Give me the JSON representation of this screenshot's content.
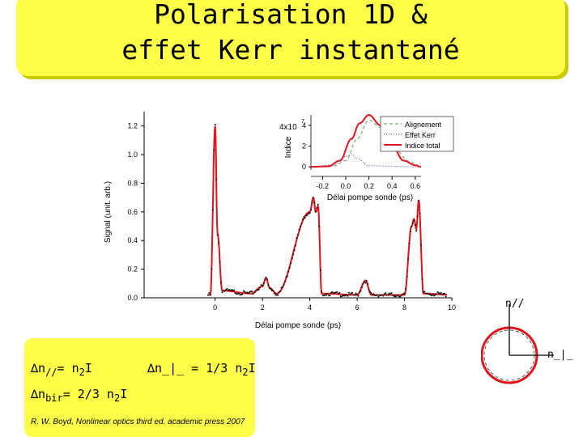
{
  "title": {
    "line1": "Polarisation 1D &",
    "line2": "effet Kerr instantané"
  },
  "main_chart": {
    "xlabel": "Délai pompe sonde (ps)",
    "ylabel": "Signal (unit. arb.)",
    "xticks": [
      "0",
      "2",
      "4",
      "6",
      "8",
      "10"
    ],
    "yticks": [
      "0.0",
      "0.2",
      "0.4",
      "0.6",
      "0.8",
      "1.0",
      "1.2"
    ]
  },
  "inset_chart": {
    "xlabel": "Délai pompe sonde (ps)",
    "ylabel": "Indice",
    "scale": "4x10",
    "scale_exp": "7",
    "xticks": [
      "-0.2",
      "0.0",
      "0.2",
      "0.4",
      "0.6"
    ],
    "yticks": [
      "4",
      "2",
      "0"
    ],
    "legend": [
      "Alignement",
      "Effet Kerr",
      "Indice total"
    ]
  },
  "chart_data": [
    {
      "type": "line",
      "xlabel": "Délai pompe sonde (ps)",
      "ylabel": "Signal (unit. arb.)",
      "xlim": [
        -3,
        10
      ],
      "ylim": [
        0,
        1.3
      ],
      "grid": false,
      "series": [
        {
          "x": [
            -3,
            -0.2,
            0.0,
            0.1,
            0.3,
            1.5,
            2.0,
            2.15,
            2.3,
            2.6,
            4.0,
            4.15,
            4.25,
            4.35,
            4.5,
            6.0,
            6.35,
            6.6,
            8.0,
            8.3,
            8.4,
            8.5,
            8.6,
            8.8,
            10
          ],
          "y": [
            0.02,
            0.02,
            1.2,
            0.45,
            0.05,
            0.03,
            0.08,
            0.14,
            0.07,
            0.03,
            0.6,
            0.7,
            0.6,
            0.64,
            0.03,
            0.02,
            0.12,
            0.02,
            0.02,
            0.5,
            0.55,
            0.48,
            0.68,
            0.03,
            0.02
          ]
        }
      ]
    },
    {
      "type": "line",
      "xlabel": "Délai pompe sonde (ps)",
      "ylabel": "Indice",
      "xlim": [
        -0.3,
        0.65
      ],
      "ylim": [
        -0.3,
        5
      ],
      "legend": "top-right",
      "series": [
        {
          "name": "Alignement",
          "x": [
            -0.3,
            -0.1,
            0.0,
            0.1,
            0.2,
            0.3,
            0.4,
            0.55,
            0.65
          ],
          "y": [
            0,
            0.1,
            0.6,
            2.7,
            4.5,
            3.8,
            2.0,
            0.5,
            0
          ]
        },
        {
          "name": "Effet Kerr",
          "x": [
            -0.3,
            -0.1,
            0.0,
            0.05,
            0.1,
            0.2,
            0.65
          ],
          "y": [
            0,
            0.2,
            1.0,
            1.2,
            0.8,
            0.1,
            0
          ]
        },
        {
          "name": "Indice total",
          "x": [
            -0.3,
            -0.15,
            -0.05,
            0.05,
            0.12,
            0.2,
            0.3,
            0.4,
            0.5,
            0.6,
            0.65
          ],
          "y": [
            0,
            0.05,
            0.6,
            2.7,
            4.2,
            5.0,
            4.0,
            2.0,
            0.6,
            0.15,
            0
          ]
        }
      ]
    }
  ],
  "diagram": {
    "label_parallel": "n//",
    "label_perp": "n_|_"
  },
  "formulas": {
    "f1_a": "∆n",
    "f1_b": "//",
    "f1_c": "=  n",
    "f1_d": "2",
    "f1_e": "I",
    "f2_a": "∆n_|_ = 1/3 n",
    "f2_b": "2",
    "f2_c": "I",
    "f3_a": "∆n",
    "f3_b": "bir",
    "f3_c": "= 2/3 n",
    "f3_d": "2",
    "f3_e": "I"
  },
  "citation": "R. W. Boyd, Nonlinear optics third ed. academic press 2007",
  "colors": {
    "title_bg": "#ffff4a",
    "curve_red": "#e0141a",
    "note_bg": "#ffff4a"
  }
}
